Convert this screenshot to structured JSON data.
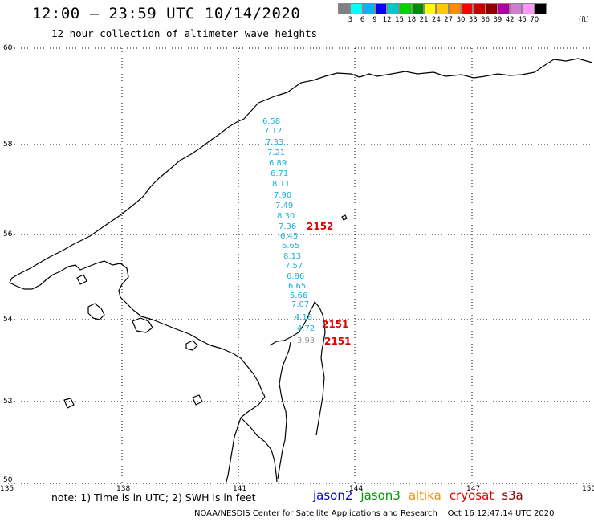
{
  "header": {
    "title": "12:00 – 23:59 UTC 10/14/2020",
    "subtitle": "12 hour collection of altimeter wave heights"
  },
  "scale": {
    "colors": [
      "#808080",
      "#00ffff",
      "#00b4ff",
      "#0000ff",
      "#00c8c8",
      "#00d200",
      "#008c00",
      "#ffff00",
      "#ffc800",
      "#ff8c00",
      "#ff0000",
      "#c80000",
      "#8c0000",
      "#aa00aa",
      "#d27dd2",
      "#ff96ff",
      "#000000"
    ],
    "labels": [
      "3",
      "6",
      "9",
      "12",
      "15",
      "18",
      "21",
      "24",
      "27",
      "30",
      "33",
      "36",
      "39",
      "42",
      "45",
      "70"
    ],
    "unit": "(ft)"
  },
  "map": {
    "lat_labels": [
      "60",
      "58",
      "56",
      "54",
      "52",
      "50"
    ],
    "lon_labels": [
      "135",
      "138",
      "141",
      "144",
      "147",
      "150"
    ],
    "wave_color": "#1ab0e0",
    "wave_labels": [
      "6.58",
      "7.12",
      "7.33",
      "7.21",
      "6.89",
      "6.71",
      "8.11",
      "7.90",
      "7.49",
      "8.30",
      "7.36",
      "6.45",
      "6.65",
      "8.13",
      "7.57",
      "6.86",
      "6.65",
      "5.66",
      "7.07",
      "4.18",
      "4.72",
      "3.93"
    ],
    "pass_color": "#e00000",
    "pass_labels": [
      "2152",
      "2151",
      "2151"
    ]
  },
  "note": "note: 1) Time is in UTC; 2) SWH is in feet",
  "legend": [
    {
      "label": "jason2",
      "color": "#0000ff"
    },
    {
      "label": "jason3",
      "color": "#009600"
    },
    {
      "label": "altika",
      "color": "#ff8c00"
    },
    {
      "label": "cryosat",
      "color": "#e00000"
    },
    {
      "label": "s3a",
      "color": "#8b0000"
    }
  ],
  "footer": "NOAA/NESDIS Center for Satellite Applications and Research    Oct 16 12:47:14 UTC 2020"
}
